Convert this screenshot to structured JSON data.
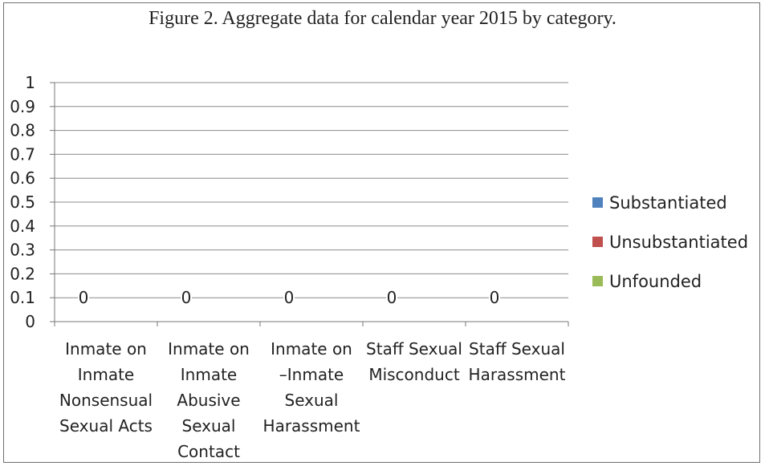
{
  "chart_data": {
    "type": "bar",
    "title": "Figure 2. Aggregate data for calendar year 2015 by category.",
    "categories": [
      [
        "Inmate on",
        "Inmate",
        "Nonsensual",
        "Sexual Acts"
      ],
      [
        "Inmate on",
        "Inmate",
        "Abusive",
        "Sexual",
        "Contact"
      ],
      [
        "Inmate on",
        "–Inmate",
        "Sexual",
        "Harassment"
      ],
      [
        "Staff Sexual",
        "Misconduct"
      ],
      [
        "Staff Sexual",
        "Harassment"
      ]
    ],
    "series": [
      {
        "name": "Substantiated",
        "color": "#4f81bd",
        "values": [
          0,
          0,
          0,
          0,
          0
        ]
      },
      {
        "name": "Unsubstantiated",
        "color": "#c0504d",
        "values": [
          0,
          0,
          0,
          0,
          0
        ]
      },
      {
        "name": "Unfounded",
        "color": "#9bbb59",
        "values": [
          0,
          0,
          0,
          0,
          0
        ]
      }
    ],
    "data_labels": [
      "0",
      "0",
      "0",
      "0",
      "0"
    ],
    "ylim": [
      0,
      1
    ],
    "yticks": [
      "0",
      "0.1",
      "0.2",
      "0.3",
      "0.4",
      "0.5",
      "0.6",
      "0.7",
      "0.8",
      "0.9",
      "1"
    ],
    "xlabel": "",
    "ylabel": "",
    "grid": true,
    "legend_position": "right"
  }
}
